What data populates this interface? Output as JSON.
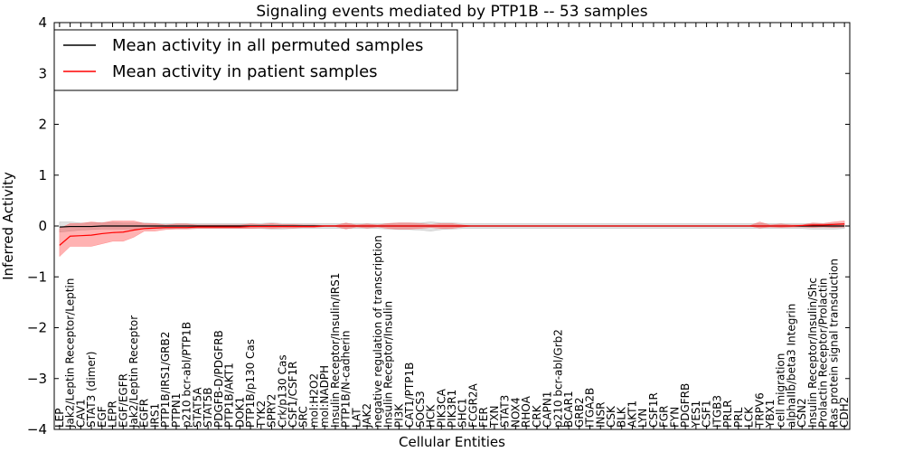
{
  "chart_data": {
    "type": "line",
    "title": "Signaling events mediated by PTP1B -- 53 samples",
    "xlabel": "Cellular Entities",
    "ylabel": "Inferred Activity",
    "ylim": [
      -4,
      4
    ],
    "yticks": [
      "4",
      "3",
      "2",
      "1",
      "0",
      "−1",
      "−2",
      "−3",
      "−4"
    ],
    "ytick_values": [
      4,
      3,
      2,
      1,
      0,
      -1,
      -2,
      -3,
      -4
    ],
    "grid": false,
    "legend_position": "top-left",
    "categories": [
      "LEP",
      "Jak2/Leptin Receptor/Leptin",
      "CAV1",
      "STAT3 (dimer)",
      "EGF",
      "LEPR",
      "EGF/EGFR",
      "Jak2/Leptin Receptor",
      "EGFR",
      "IRS1",
      "PTP1B/IRS1/GRB2",
      "PTPN1",
      "p210 bcr-abl/PTP1B",
      "STAT5A",
      "STAT5B",
      "PDGFB-D/PDGFRB",
      "PTP1B/AKT1",
      "DOK1",
      "PTP1B/p130 Cas",
      "TYK2",
      "SPRY2",
      "Crk/p130 Cas",
      "CSF1/CSF1R",
      "SRC",
      "mol:H2O2",
      "mol:NADPH",
      "Insulin Receptor/Insulin/IRS1",
      "PTP1B/N-cadherin",
      "LAT",
      "JAK2",
      "negative regulation of transcription",
      "Insulin Receptor/Insulin",
      "PI3K",
      "CAT1/PTP1B",
      "SOCS3",
      "HCK",
      "PIK3CA",
      "PIK3R1",
      "SHC1",
      "FCGR2A",
      "FER",
      "TXN",
      "STAT3",
      "NOX4",
      "RHOA",
      "CRK",
      "CAPN1",
      "p210 bcr-abl/Grb2",
      "BCAR1",
      "GRB2",
      "ITGA2B",
      "INSR",
      "CSK",
      "BLK",
      "AKT1",
      "LYN",
      "CSF1R",
      "FGR",
      "FYN",
      "PDGFRB",
      "YES1",
      "CSF1",
      "ITGB3",
      "PRLR",
      "PRL",
      "LCK",
      "TRPV6",
      "YBX1",
      "cell migration",
      "alphaIIb/beta3 Integrin",
      "CSN2",
      "Insulin Receptor/Insulin/Shc",
      "Prolactin Receptor/Prolactin",
      "Ras protein signal transduction",
      "CDH2"
    ],
    "series": [
      {
        "name": "Mean activity in all permuted samples",
        "color": "#000000",
        "values": [
          -0.02,
          -0.01,
          -0.01,
          -0.01,
          0.0,
          0.0,
          0.0,
          0.0,
          0.0,
          0.0,
          0.0,
          0.0,
          0.0,
          0.0,
          0.0,
          0.0,
          0.0,
          0.0,
          0.0,
          0.0,
          0.0,
          0.0,
          0.0,
          0.0,
          0.0,
          0.0,
          0.0,
          0.0,
          0.0,
          0.0,
          0.0,
          0.0,
          0.0,
          0.0,
          0.0,
          0.0,
          0.0,
          0.0,
          0.0,
          0.0,
          0.0,
          0.0,
          0.0,
          0.0,
          0.0,
          0.0,
          0.0,
          0.0,
          0.0,
          0.0,
          0.0,
          0.0,
          0.0,
          0.0,
          0.0,
          0.0,
          0.0,
          0.0,
          0.0,
          0.0,
          0.0,
          0.0,
          0.0,
          0.0,
          0.0,
          0.0,
          0.0,
          0.0,
          0.0,
          0.0,
          0.0,
          0.0,
          0.0,
          0.0,
          0.0
        ],
        "band_upper": [
          0.08,
          0.08,
          0.06,
          0.06,
          0.07,
          0.07,
          0.06,
          0.06,
          0.06,
          0.05,
          0.05,
          0.05,
          0.05,
          0.05,
          0.05,
          0.05,
          0.05,
          0.05,
          0.05,
          0.05,
          0.06,
          0.05,
          0.05,
          0.05,
          0.05,
          0.05,
          0.05,
          0.05,
          0.05,
          0.05,
          0.05,
          0.05,
          0.06,
          0.06,
          0.06,
          0.08,
          0.06,
          0.06,
          0.05,
          0.05,
          0.05,
          0.05,
          0.05,
          0.05,
          0.05,
          0.05,
          0.05,
          0.05,
          0.05,
          0.05,
          0.05,
          0.05,
          0.05,
          0.05,
          0.05,
          0.05,
          0.05,
          0.05,
          0.05,
          0.05,
          0.05,
          0.05,
          0.05,
          0.05,
          0.05,
          0.05,
          0.05,
          0.05,
          0.05,
          0.05,
          0.05,
          0.05,
          0.05,
          0.05,
          0.05
        ],
        "band_lower": [
          -0.12,
          -0.1,
          -0.08,
          -0.07,
          -0.06,
          -0.06,
          -0.06,
          -0.06,
          -0.06,
          -0.05,
          -0.05,
          -0.05,
          -0.05,
          -0.05,
          -0.05,
          -0.05,
          -0.05,
          -0.05,
          -0.05,
          -0.05,
          -0.06,
          -0.06,
          -0.05,
          -0.05,
          -0.05,
          -0.05,
          -0.05,
          -0.05,
          -0.05,
          -0.05,
          -0.05,
          -0.06,
          -0.07,
          -0.07,
          -0.08,
          -0.1,
          -0.07,
          -0.06,
          -0.05,
          -0.05,
          -0.05,
          -0.05,
          -0.05,
          -0.05,
          -0.05,
          -0.05,
          -0.05,
          -0.05,
          -0.05,
          -0.05,
          -0.05,
          -0.05,
          -0.05,
          -0.05,
          -0.05,
          -0.05,
          -0.05,
          -0.05,
          -0.05,
          -0.05,
          -0.05,
          -0.05,
          -0.05,
          -0.05,
          -0.05,
          -0.05,
          -0.05,
          -0.05,
          -0.05,
          -0.05,
          -0.05,
          -0.06,
          -0.06,
          -0.06,
          -0.05
        ]
      },
      {
        "name": "Mean activity in patient samples",
        "color": "#ff0000",
        "values": [
          -0.38,
          -0.2,
          -0.19,
          -0.18,
          -0.15,
          -0.13,
          -0.12,
          -0.08,
          -0.05,
          -0.04,
          -0.03,
          -0.03,
          -0.03,
          -0.02,
          -0.02,
          -0.02,
          -0.02,
          -0.02,
          -0.01,
          -0.01,
          -0.01,
          -0.01,
          -0.01,
          -0.01,
          -0.01,
          0.0,
          0.0,
          0.0,
          0.0,
          0.0,
          0.0,
          0.0,
          0.0,
          0.0,
          0.0,
          0.0,
          0.0,
          0.0,
          0.0,
          0.0,
          0.0,
          0.0,
          0.0,
          0.0,
          0.0,
          0.0,
          0.0,
          0.0,
          0.0,
          0.0,
          0.0,
          0.0,
          0.0,
          0.0,
          0.0,
          0.0,
          0.0,
          0.0,
          0.0,
          0.0,
          0.0,
          0.0,
          0.0,
          0.0,
          0.0,
          0.0,
          0.0,
          0.0,
          0.0,
          0.0,
          0.01,
          0.02,
          0.02,
          0.03,
          0.04
        ],
        "band_upper": [
          -0.05,
          0.05,
          0.05,
          0.08,
          0.06,
          0.1,
          0.1,
          0.1,
          0.05,
          0.05,
          0.02,
          0.04,
          0.04,
          0.02,
          0.02,
          0.02,
          0.02,
          0.02,
          0.04,
          0.03,
          0.05,
          0.03,
          0.03,
          0.02,
          0.02,
          0.01,
          0.01,
          0.06,
          0.02,
          0.04,
          0.02,
          0.05,
          0.06,
          0.06,
          0.05,
          0.03,
          0.05,
          0.05,
          0.02,
          0.0,
          0.0,
          0.0,
          0.0,
          0.0,
          0.0,
          0.0,
          0.0,
          0.0,
          0.0,
          0.0,
          0.0,
          0.0,
          0.0,
          0.0,
          0.0,
          0.0,
          0.0,
          0.0,
          0.0,
          0.0,
          0.0,
          0.0,
          0.0,
          0.0,
          0.0,
          0.0,
          0.08,
          0.02,
          0.04,
          0.02,
          0.02,
          0.06,
          0.05,
          0.08,
          0.1
        ],
        "band_lower": [
          -0.6,
          -0.4,
          -0.4,
          -0.4,
          -0.35,
          -0.3,
          -0.3,
          -0.22,
          -0.1,
          -0.1,
          -0.07,
          -0.06,
          -0.06,
          -0.05,
          -0.05,
          -0.05,
          -0.05,
          -0.05,
          -0.05,
          -0.04,
          -0.05,
          -0.04,
          -0.04,
          -0.03,
          -0.03,
          -0.01,
          -0.01,
          -0.06,
          -0.02,
          -0.04,
          -0.02,
          -0.05,
          -0.06,
          -0.06,
          -0.05,
          -0.03,
          -0.05,
          -0.05,
          -0.02,
          0.0,
          0.0,
          0.0,
          0.0,
          0.0,
          0.0,
          0.0,
          0.0,
          0.0,
          0.0,
          0.0,
          0.0,
          0.0,
          0.0,
          0.0,
          0.0,
          0.0,
          0.0,
          0.0,
          0.0,
          0.0,
          0.0,
          0.0,
          0.0,
          0.0,
          0.0,
          0.0,
          -0.04,
          -0.02,
          -0.03,
          -0.02,
          -0.02,
          -0.03,
          -0.02,
          -0.03,
          -0.02
        ]
      }
    ]
  }
}
